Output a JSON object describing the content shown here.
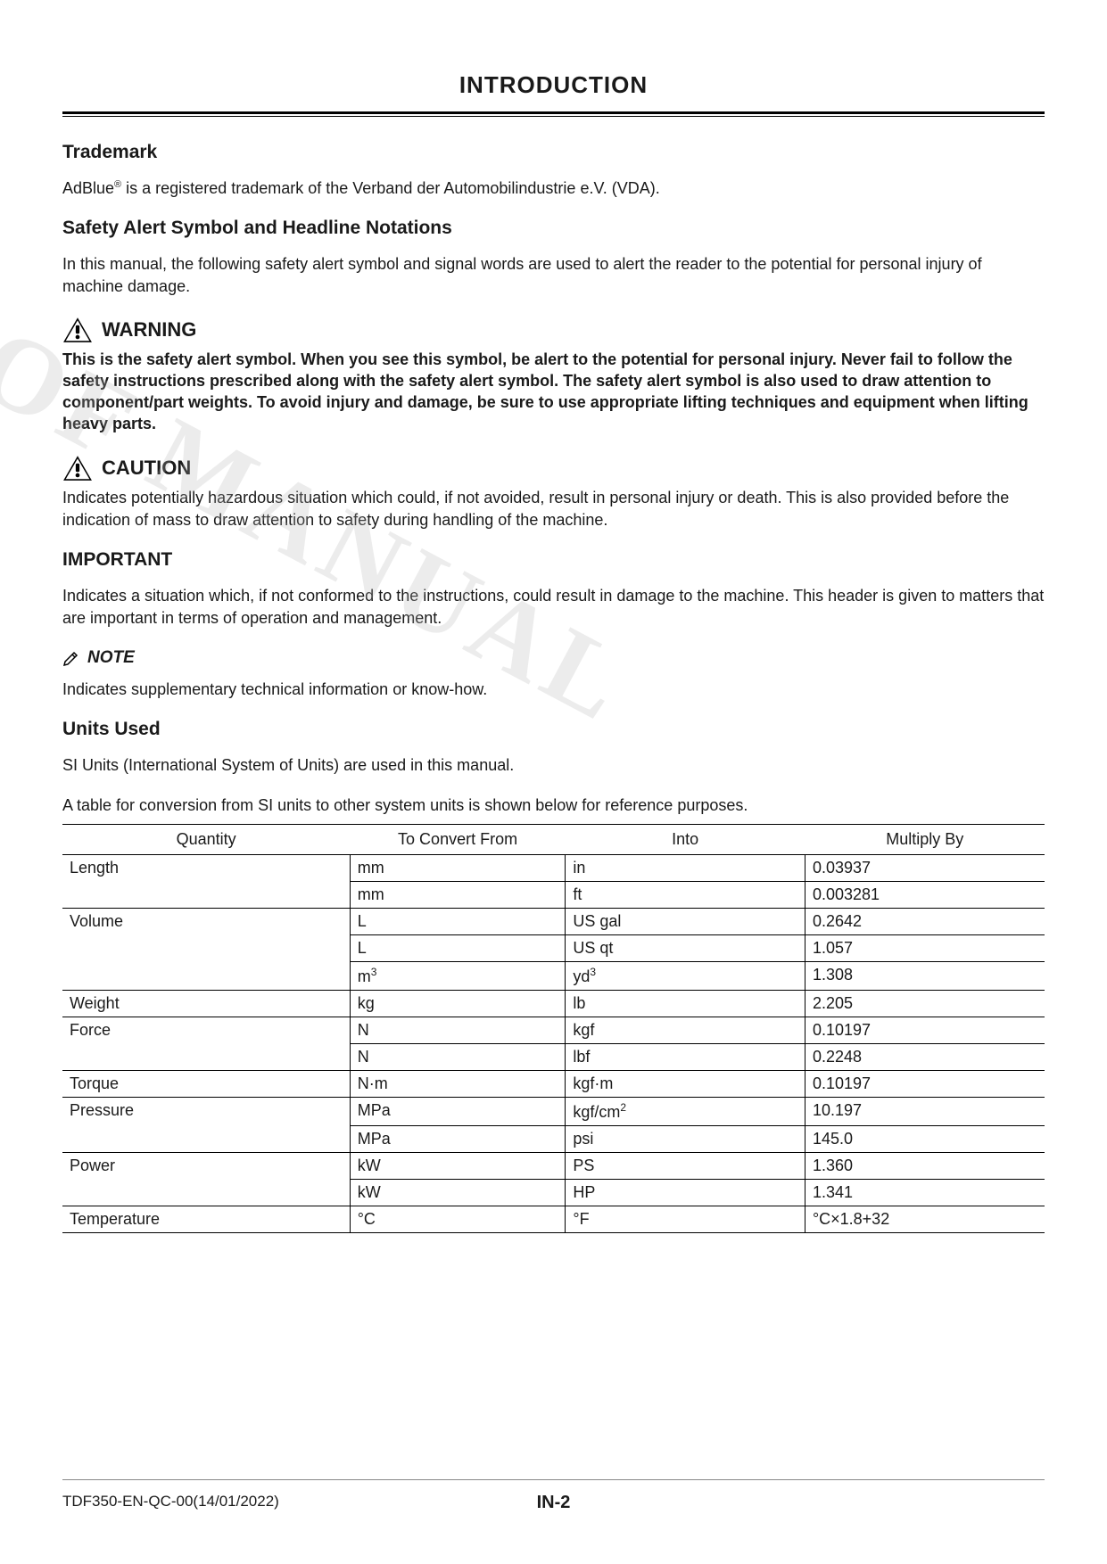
{
  "page_title": "INTRODUCTION",
  "watermark": "OF MANUAL",
  "sections": {
    "trademark": {
      "heading": "Trademark",
      "text_prefix": "AdBlue",
      "reg": "®",
      "text_suffix": " is a registered trademark of the Verband der Automobilindustrie e.V. (VDA)."
    },
    "safety": {
      "heading": "Safety Alert Symbol and Headline Notations",
      "intro": "In this manual, the following safety alert symbol and signal words are used to alert the reader to the potential for personal injury of machine damage."
    },
    "warning": {
      "label": "WARNING",
      "text": "This is the safety alert symbol. When you see this symbol, be alert to the potential for personal injury. Never fail to follow the safety instructions prescribed along with the safety alert symbol. The safety alert symbol is also used to draw attention to component/part weights. To avoid injury and damage, be sure to use appropriate lifting techniques and equipment when lifting heavy parts."
    },
    "caution": {
      "label": "CAUTION",
      "text": "Indicates potentially hazardous situation which could, if not avoided, result in personal injury or death. This is also provided before the indication of mass to draw attention to safety during handling of the machine."
    },
    "important": {
      "heading": "IMPORTANT",
      "text": "Indicates a situation which, if not conformed to the instructions, could result in damage to the machine. This header is given to matters that are important in terms of operation and management."
    },
    "note": {
      "label": "NOTE",
      "text": "Indicates supplementary technical information or know-how."
    },
    "units": {
      "heading": "Units Used",
      "intro1": "SI Units (International System of Units) are used in this manual.",
      "intro2": "A table for conversion from SI units to other system units is shown below for reference purposes."
    }
  },
  "table": {
    "headers": [
      "Quantity",
      "To Convert From",
      "Into",
      "Multiply By"
    ],
    "rows": [
      {
        "qty": "Length",
        "from": "mm",
        "into": "in",
        "mult": "0.03937"
      },
      {
        "qty": "",
        "from": "mm",
        "into": "ft",
        "mult": "0.003281"
      },
      {
        "qty": "Volume",
        "from": "L",
        "into": "US gal",
        "mult": "0.2642"
      },
      {
        "qty": "",
        "from": "L",
        "into": "US qt",
        "mult": "1.057"
      },
      {
        "qty": "",
        "from": "m",
        "from_sup": "3",
        "into": "yd",
        "into_sup": "3",
        "mult": "1.308"
      },
      {
        "qty": "Weight",
        "from": "kg",
        "into": "lb",
        "mult": "2.205"
      },
      {
        "qty": "Force",
        "from": "N",
        "into": "kgf",
        "mult": "0.10197"
      },
      {
        "qty": "",
        "from": "N",
        "into": "lbf",
        "mult": "0.2248"
      },
      {
        "qty": "Torque",
        "from": "N·m",
        "into": "kgf·m",
        "mult": "0.10197"
      },
      {
        "qty": "Pressure",
        "from": "MPa",
        "into": "kgf/cm",
        "into_sup": "2",
        "mult": "10.197"
      },
      {
        "qty": "",
        "from": "MPa",
        "into": "psi",
        "mult": "145.0"
      },
      {
        "qty": "Power",
        "from": "kW",
        "into": "PS",
        "mult": "1.360"
      },
      {
        "qty": "",
        "from": "kW",
        "into": "HP",
        "mult": "1.341"
      },
      {
        "qty": "Temperature",
        "from": "°C",
        "into": "°F",
        "mult": "°C×1.8+32"
      }
    ]
  },
  "footer": {
    "doc_id": "TDF350-EN-QC-00(14/01/2022)",
    "page": "IN-2"
  }
}
